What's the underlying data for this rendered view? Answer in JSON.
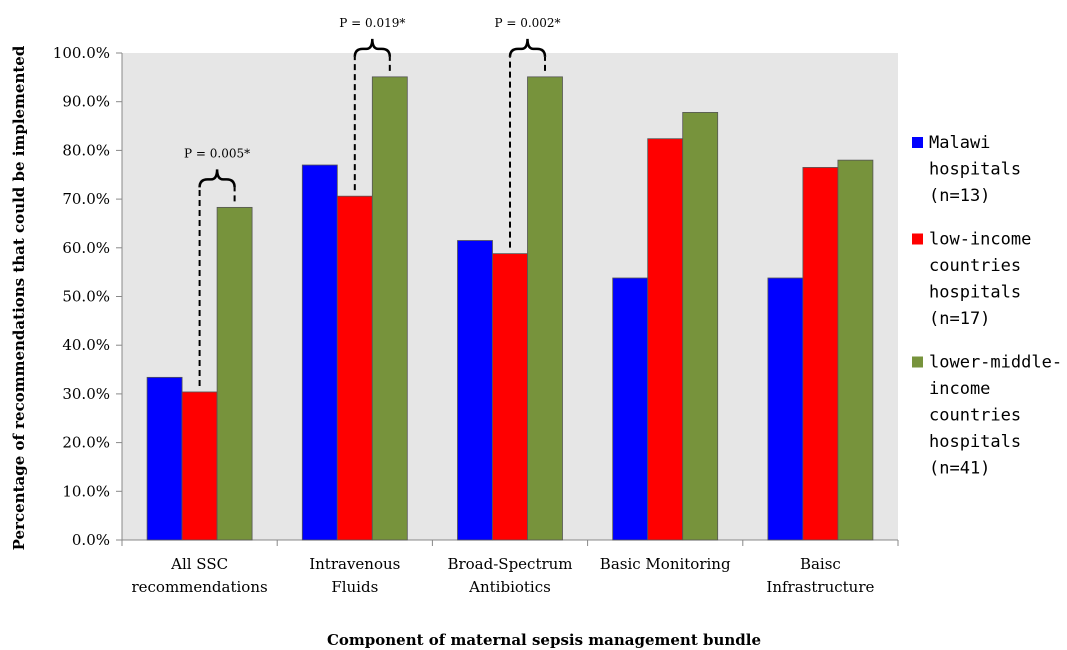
{
  "chart_data": {
    "type": "bar",
    "xlabel": "Component of maternal sepsis management bundle",
    "ylabel": "Percentage of recommendations that could be implemented",
    "ylim": [
      0,
      100
    ],
    "y_ticks": [
      "0.0%",
      "10.0%",
      "20.0%",
      "30.0%",
      "40.0%",
      "50.0%",
      "60.0%",
      "70.0%",
      "80.0%",
      "90.0%",
      "100.0%"
    ],
    "categories": [
      [
        "All SSC",
        "recommendations"
      ],
      [
        "Intravenous",
        "Fluids"
      ],
      [
        "Broad-Spectrum",
        "Antibiotics"
      ],
      [
        "Basic Monitoring"
      ],
      [
        "Baisc",
        "Infrastructure"
      ]
    ],
    "series": [
      {
        "name": [
          "Malawi",
          "hospitals",
          "(n=13)"
        ],
        "color": "#0000ff",
        "values": [
          33.4,
          77.0,
          61.5,
          53.8,
          53.8
        ]
      },
      {
        "name": [
          "low-income",
          "countries",
          "hospitals",
          "(n=17)"
        ],
        "color": "#ff0000",
        "values": [
          30.4,
          70.6,
          58.8,
          82.4,
          76.5
        ]
      },
      {
        "name": [
          "lower-middle-",
          "income",
          "countries",
          "hospitals",
          "(n=41)"
        ],
        "color": "#77933c",
        "values": [
          68.3,
          95.1,
          95.1,
          87.8,
          78.0
        ]
      }
    ],
    "annotations": [
      {
        "category": 0,
        "label": "P = 0.005*"
      },
      {
        "category": 1,
        "label": "P = 0.019*"
      },
      {
        "category": 2,
        "label": "P = 0.002*"
      }
    ],
    "grid": false,
    "plot_background": "#e6e6e6",
    "legend_position": "right"
  }
}
